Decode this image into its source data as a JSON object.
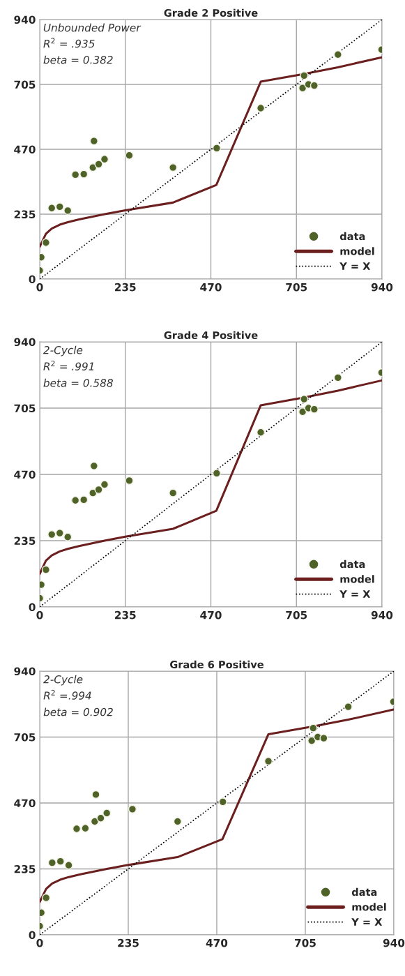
{
  "chart_data": [
    {
      "type": "scatter",
      "title": "Grade 2 Positive",
      "xlim": [
        0,
        940
      ],
      "ylim": [
        0,
        940
      ],
      "xticks": [
        0,
        235,
        470,
        705,
        940
      ],
      "yticks": [
        0,
        235,
        470,
        705,
        940
      ],
      "grid": true,
      "legend": "bottom right",
      "annotations": [
        "Unbounded Power",
        "R$^{2}$ = .935",
        "beta = 0.382"
      ],
      "series": [
        {
          "name": "data",
          "marker": "circle",
          "color": "#4f6228",
          "x": [
            0,
            4,
            17,
            33,
            55,
            77,
            98,
            121,
            146,
            149,
            162,
            178,
            246,
            366,
            486,
            607,
            722,
            726,
            738,
            754,
            819,
            939
          ],
          "values": [
            31,
            79,
            132,
            257,
            262,
            248,
            378,
            380,
            404,
            500,
            416,
            434,
            448,
            404,
            474,
            619,
            692,
            737,
            705,
            701,
            813,
            831
          ]
        },
        {
          "name": "model",
          "type": "line",
          "line_style": "solid",
          "color": "#6b1f1f",
          "x": [
            0,
            17,
            33,
            55,
            77,
            108,
            178,
            235,
            366,
            485,
            607,
            726,
            819,
            939
          ],
          "values": [
            117,
            164,
            183,
            197,
            206,
            216,
            235,
            249,
            277,
            341,
            715,
            743,
            767,
            803
          ]
        },
        {
          "name": "Y = X",
          "type": "line",
          "line_style": "dotted",
          "color": "#000000",
          "x": [
            0,
            940
          ],
          "values": [
            0,
            940
          ]
        }
      ]
    },
    {
      "type": "scatter",
      "title": "Grade 4 Positive",
      "xlim": [
        0,
        940
      ],
      "ylim": [
        0,
        940
      ],
      "xticks": [
        0,
        235,
        470,
        705,
        940
      ],
      "yticks": [
        0,
        235,
        470,
        705,
        940
      ],
      "grid": true,
      "legend": "bottom right",
      "annotations": [
        "2-Cycle",
        "R$^{2}$ = .991",
        "beta = 0.588"
      ],
      "series": [
        {
          "name": "data",
          "marker": "circle",
          "color": "#4f6228",
          "x": [
            0,
            4,
            17,
            33,
            55,
            77,
            98,
            121,
            146,
            149,
            162,
            178,
            246,
            366,
            486,
            607,
            722,
            726,
            738,
            754,
            819,
            939
          ],
          "values": [
            31,
            79,
            132,
            257,
            262,
            248,
            378,
            380,
            404,
            500,
            416,
            434,
            448,
            404,
            474,
            619,
            692,
            737,
            705,
            701,
            813,
            831
          ]
        },
        {
          "name": "model",
          "type": "line",
          "line_style": "solid",
          "color": "#6b1f1f",
          "x": [
            0,
            17,
            33,
            55,
            77,
            108,
            178,
            235,
            366,
            485,
            607,
            726,
            819,
            939
          ],
          "values": [
            117,
            164,
            183,
            197,
            206,
            216,
            235,
            249,
            277,
            341,
            715,
            743,
            767,
            803
          ]
        },
        {
          "name": "Y = X",
          "type": "line",
          "line_style": "dotted",
          "color": "#000000",
          "x": [
            0,
            940
          ],
          "values": [
            0,
            940
          ]
        }
      ]
    },
    {
      "type": "scatter",
      "title": "Grade 6 Positive",
      "xlim": [
        0,
        940
      ],
      "ylim": [
        0,
        940
      ],
      "xticks": [
        0,
        235,
        470,
        705,
        940
      ],
      "yticks": [
        0,
        235,
        470,
        705,
        940
      ],
      "grid": true,
      "legend": "bottom right",
      "annotations": [
        "2-Cycle",
        "R$^{2}$ =.994",
        "beta = 0.902"
      ],
      "series": [
        {
          "name": "data",
          "marker": "circle",
          "color": "#4f6228",
          "x": [
            0,
            4,
            17,
            33,
            55,
            77,
            98,
            121,
            146,
            149,
            162,
            178,
            246,
            366,
            486,
            607,
            722,
            726,
            738,
            754,
            819,
            939
          ],
          "values": [
            31,
            79,
            132,
            257,
            262,
            248,
            378,
            380,
            404,
            500,
            416,
            434,
            448,
            404,
            474,
            619,
            692,
            737,
            705,
            701,
            813,
            831
          ]
        },
        {
          "name": "model",
          "type": "line",
          "line_style": "solid",
          "color": "#6b1f1f",
          "x": [
            0,
            17,
            33,
            55,
            77,
            108,
            178,
            235,
            366,
            485,
            607,
            726,
            819,
            939
          ],
          "values": [
            117,
            164,
            183,
            197,
            206,
            216,
            235,
            249,
            277,
            341,
            715,
            743,
            767,
            803
          ]
        },
        {
          "name": "Y = X",
          "type": "line",
          "line_style": "dotted",
          "color": "#000000",
          "x": [
            0,
            940
          ],
          "values": [
            0,
            940
          ]
        }
      ]
    }
  ]
}
